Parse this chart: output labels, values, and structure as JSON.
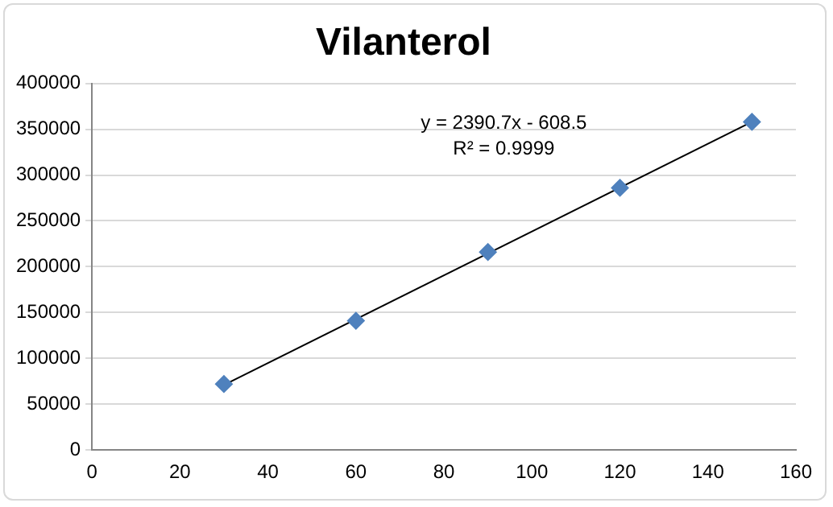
{
  "chart_data": {
    "type": "scatter",
    "title": "Vilanterol",
    "x": [
      30,
      60,
      90,
      120,
      150
    ],
    "series": [
      {
        "type": "scatter",
        "color": "#4f81bd",
        "values": [
          72000,
          141000,
          216000,
          286000,
          358000
        ],
        "marker": "diamond"
      },
      {
        "type": "line",
        "color": "#000000",
        "x": [
          30,
          150
        ],
        "values": [
          71000,
          358000
        ],
        "marker": "none",
        "line_style": "solid"
      }
    ],
    "xlim": [
      0,
      160
    ],
    "xticks": [
      0,
      20,
      40,
      60,
      80,
      100,
      120,
      140,
      160
    ],
    "ylim": [
      0,
      400000
    ],
    "yticks": [
      0,
      50000,
      100000,
      150000,
      200000,
      250000,
      300000,
      350000,
      400000
    ],
    "grid": "y",
    "legend": false,
    "annotations": [
      "y = 2390.7x - 608.5",
      "R² = 0.9999"
    ]
  }
}
